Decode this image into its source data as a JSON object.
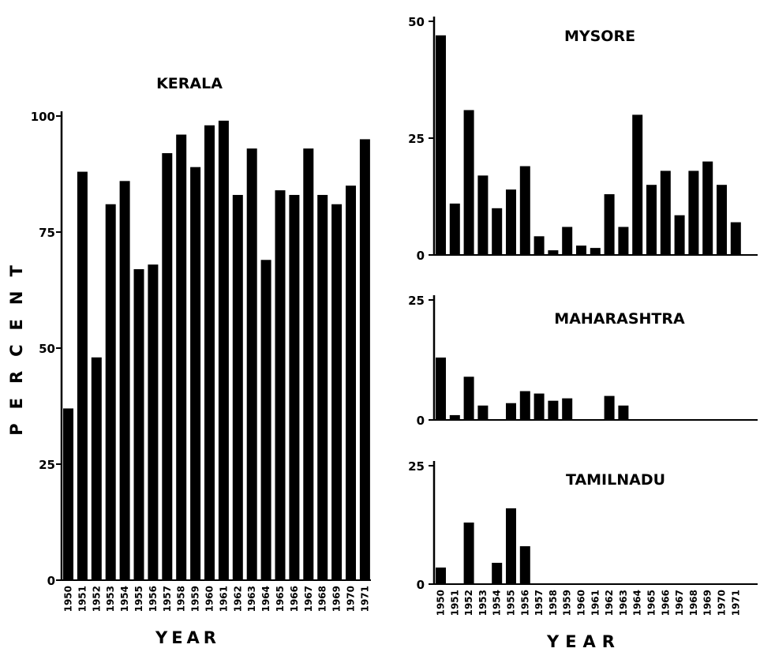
{
  "figure": {
    "ylabel_left": "PERCENT",
    "xlabel_left": "YEAR",
    "xlabel_right": "YEAR"
  },
  "chart_data": [
    {
      "id": "kerala",
      "type": "bar",
      "title": "KERALA",
      "ylabel": "PERCENT",
      "xlabel": "YEAR",
      "ylim": [
        0,
        100
      ],
      "yticks": [
        0,
        25,
        50,
        75,
        100
      ],
      "ytick_labels": [
        "0",
        "25",
        "50",
        "75",
        "100"
      ],
      "categories": [
        "1950",
        "1951",
        "1952",
        "1953",
        "1954",
        "1955",
        "1956",
        "1957",
        "1958",
        "1959",
        "1960",
        "1961",
        "1962",
        "1963",
        "1964",
        "1965",
        "1966",
        "1967",
        "1968",
        "1969",
        "1970",
        "1971"
      ],
      "values": [
        37,
        88,
        48,
        81,
        86,
        67,
        68,
        92,
        96,
        89,
        98,
        99,
        83,
        93,
        69,
        84,
        83,
        93,
        83,
        81,
        85,
        95
      ]
    },
    {
      "id": "mysore",
      "type": "bar",
      "title": "MYSORE",
      "ylim": [
        0,
        50
      ],
      "yticks": [
        0,
        25,
        50
      ],
      "ytick_labels": [
        "0",
        "25",
        "50"
      ],
      "categories": [
        "1950",
        "1951",
        "1952",
        "1953",
        "1954",
        "1955",
        "1956",
        "1957",
        "1958",
        "1959",
        "1960",
        "1961",
        "1962",
        "1963",
        "1964",
        "1965",
        "1966",
        "1967",
        "1968",
        "1969",
        "1970",
        "1971"
      ],
      "values": [
        47,
        11,
        31,
        17,
        10,
        14,
        19,
        4,
        1,
        6,
        2,
        1.5,
        13,
        6,
        30,
        15,
        18,
        8.5,
        18,
        20,
        15,
        7
      ]
    },
    {
      "id": "maharashtra",
      "type": "bar",
      "title": "MAHARASHTRA",
      "ylim": [
        0,
        25
      ],
      "yticks": [
        0,
        25
      ],
      "ytick_labels": [
        "0",
        "25"
      ],
      "categories": [
        "1950",
        "1951",
        "1952",
        "1953",
        "1954",
        "1955",
        "1956",
        "1957",
        "1958",
        "1959",
        "1960",
        "1961",
        "1962",
        "1963",
        "1964",
        "1965",
        "1966",
        "1967",
        "1968",
        "1969",
        "1970",
        "1971"
      ],
      "values": [
        13,
        1,
        9,
        3,
        0,
        3.5,
        6,
        5.5,
        4,
        4.5,
        0,
        0,
        5,
        3,
        0,
        0,
        0,
        0,
        0,
        0,
        0,
        0
      ]
    },
    {
      "id": "tamilnadu",
      "type": "bar",
      "title": "TAMILNADU",
      "xlabel": "YEAR",
      "ylim": [
        0,
        25
      ],
      "yticks": [
        0,
        25
      ],
      "ytick_labels": [
        "0",
        "25"
      ],
      "categories": [
        "1950",
        "1951",
        "1952",
        "1953",
        "1954",
        "1955",
        "1956",
        "1957",
        "1958",
        "1959",
        "1960",
        "1961",
        "1962",
        "1963",
        "1964",
        "1965",
        "1966",
        "1967",
        "1968",
        "1969",
        "1970",
        "1971"
      ],
      "values": [
        3.5,
        0,
        13,
        0,
        4.5,
        16,
        8,
        0,
        0,
        0,
        0,
        0,
        0,
        0,
        0,
        0,
        0,
        0,
        0,
        0,
        0,
        0
      ]
    }
  ]
}
